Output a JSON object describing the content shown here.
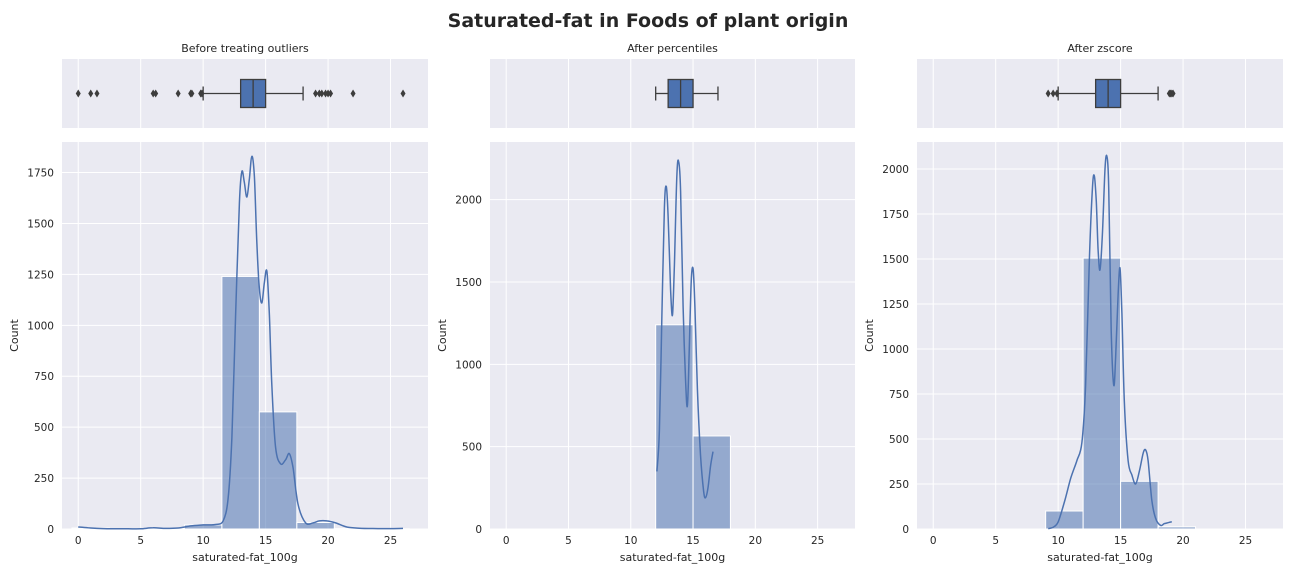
{
  "figure_title": "Saturated-fat in Foods of plant origin",
  "colors": {
    "panel_bg": "#eaeaf2",
    "grid": "#ffffff",
    "bar_fill": "#4c72b0",
    "kde_line": "#4c72b0",
    "box_edge": "#3d3d3d",
    "text": "#262626"
  },
  "chart_data": [
    {
      "type": "histogram",
      "title": "Before treating outliers",
      "xlabel": "saturated-fat_100g",
      "ylabel": "Count",
      "xlim": [
        -1.3,
        28
      ],
      "ylim": [
        0,
        1900
      ],
      "xticks": [
        0,
        5,
        10,
        15,
        20,
        25
      ],
      "yticks": [
        0,
        250,
        500,
        750,
        1000,
        1250,
        1500,
        1750
      ],
      "bins": [
        {
          "x0": -0.5,
          "x1": 2.5,
          "count": 5
        },
        {
          "x0": 2.5,
          "x1": 5.5,
          "count": 1
        },
        {
          "x0": 5.5,
          "x1": 8.5,
          "count": 4
        },
        {
          "x0": 8.5,
          "x1": 11.5,
          "count": 20
        },
        {
          "x0": 11.5,
          "x1": 14.5,
          "count": 1240
        },
        {
          "x0": 14.5,
          "x1": 17.5,
          "count": 575
        },
        {
          "x0": 17.5,
          "x1": 20.5,
          "count": 32
        },
        {
          "x0": 20.5,
          "x1": 23.5,
          "count": 2
        },
        {
          "x0": 23.5,
          "x1": 26.5,
          "count": 1
        }
      ],
      "kde": [
        [
          0,
          10
        ],
        [
          1,
          5
        ],
        [
          2,
          2
        ],
        [
          3,
          1
        ],
        [
          4,
          1
        ],
        [
          5,
          1
        ],
        [
          6,
          6
        ],
        [
          7,
          3
        ],
        [
          8,
          5
        ],
        [
          9,
          15
        ],
        [
          10,
          20
        ],
        [
          11,
          22
        ],
        [
          11.6,
          40
        ],
        [
          12,
          150
        ],
        [
          12.3,
          450
        ],
        [
          12.6,
          1050
        ],
        [
          12.9,
          1600
        ],
        [
          13.1,
          1755
        ],
        [
          13.3,
          1700
        ],
        [
          13.5,
          1630
        ],
        [
          13.7,
          1720
        ],
        [
          13.9,
          1830
        ],
        [
          14.1,
          1730
        ],
        [
          14.3,
          1400
        ],
        [
          14.5,
          1180
        ],
        [
          14.7,
          1110
        ],
        [
          14.9,
          1210
        ],
        [
          15.1,
          1265
        ],
        [
          15.3,
          1050
        ],
        [
          15.5,
          700
        ],
        [
          15.8,
          400
        ],
        [
          16.2,
          320
        ],
        [
          16.6,
          340
        ],
        [
          16.9,
          370
        ],
        [
          17.2,
          300
        ],
        [
          17.6,
          120
        ],
        [
          18.2,
          30
        ],
        [
          18.8,
          30
        ],
        [
          19.3,
          40
        ],
        [
          19.9,
          40
        ],
        [
          20.6,
          30
        ],
        [
          21.5,
          10
        ],
        [
          22.5,
          4
        ],
        [
          24,
          2
        ],
        [
          25,
          2
        ],
        [
          26,
          3
        ]
      ],
      "box": {
        "q1": 13,
        "median": 14,
        "q3": 15,
        "whisker_low": 10,
        "whisker_high": 18,
        "fliers": [
          0,
          1,
          1.5,
          6,
          6.2,
          8,
          9,
          9.1,
          9.8,
          9.9,
          19,
          19.3,
          19.5,
          19.8,
          20,
          20.2,
          22,
          26
        ]
      }
    },
    {
      "type": "histogram",
      "title": "After percentiles",
      "xlabel": "saturated-fat_100g",
      "ylabel": "Count",
      "xlim": [
        -1.3,
        28
      ],
      "ylim": [
        0,
        2350
      ],
      "xticks": [
        0,
        5,
        10,
        15,
        20,
        25
      ],
      "yticks": [
        0,
        500,
        1000,
        1500,
        2000
      ],
      "bins": [
        {
          "x0": 12,
          "x1": 15,
          "count": 1240
        },
        {
          "x0": 15,
          "x1": 18,
          "count": 565
        }
      ],
      "kde": [
        [
          12.1,
          350
        ],
        [
          12.3,
          600
        ],
        [
          12.5,
          1300
        ],
        [
          12.7,
          1950
        ],
        [
          12.85,
          2080
        ],
        [
          13.0,
          1900
        ],
        [
          13.2,
          1450
        ],
        [
          13.35,
          1300
        ],
        [
          13.5,
          1600
        ],
        [
          13.7,
          2150
        ],
        [
          13.85,
          2230
        ],
        [
          14.0,
          2050
        ],
        [
          14.2,
          1350
        ],
        [
          14.4,
          900
        ],
        [
          14.55,
          750
        ],
        [
          14.7,
          1100
        ],
        [
          14.85,
          1500
        ],
        [
          15.0,
          1580
        ],
        [
          15.15,
          1350
        ],
        [
          15.35,
          850
        ],
        [
          15.6,
          450
        ],
        [
          15.85,
          230
        ],
        [
          16.0,
          190
        ],
        [
          16.2,
          250
        ],
        [
          16.4,
          380
        ],
        [
          16.6,
          470
        ]
      ],
      "box": {
        "q1": 13,
        "median": 14,
        "q3": 15,
        "whisker_low": 12,
        "whisker_high": 17,
        "fliers": []
      }
    },
    {
      "type": "histogram",
      "title": "After zscore",
      "xlabel": "saturated-fat_100g",
      "ylabel": "Count",
      "xlim": [
        -1.3,
        28
      ],
      "ylim": [
        0,
        2150
      ],
      "xticks": [
        0,
        5,
        10,
        15,
        20,
        25
      ],
      "yticks": [
        0,
        250,
        500,
        750,
        1000,
        1250,
        1500,
        1750,
        2000
      ],
      "bins": [
        {
          "x0": 9,
          "x1": 12,
          "count": 100
        },
        {
          "x0": 12,
          "x1": 15,
          "count": 1505
        },
        {
          "x0": 15,
          "x1": 18,
          "count": 265
        },
        {
          "x0": 18,
          "x1": 21,
          "count": 12
        }
      ],
      "kde": [
        [
          9.2,
          2
        ],
        [
          9.6,
          10
        ],
        [
          10,
          40
        ],
        [
          10.5,
          150
        ],
        [
          11,
          280
        ],
        [
          11.5,
          380
        ],
        [
          11.9,
          480
        ],
        [
          12.2,
          800
        ],
        [
          12.5,
          1500
        ],
        [
          12.75,
          1900
        ],
        [
          12.9,
          1960
        ],
        [
          13.05,
          1820
        ],
        [
          13.2,
          1550
        ],
        [
          13.35,
          1440
        ],
        [
          13.55,
          1650
        ],
        [
          13.75,
          2000
        ],
        [
          13.9,
          2070
        ],
        [
          14.05,
          1900
        ],
        [
          14.25,
          1100
        ],
        [
          14.45,
          800
        ],
        [
          14.6,
          950
        ],
        [
          14.8,
          1300
        ],
        [
          14.95,
          1450
        ],
        [
          15.1,
          1200
        ],
        [
          15.3,
          700
        ],
        [
          15.6,
          380
        ],
        [
          15.9,
          300
        ],
        [
          16.2,
          250
        ],
        [
          16.5,
          320
        ],
        [
          16.8,
          420
        ],
        [
          17.0,
          440
        ],
        [
          17.2,
          380
        ],
        [
          17.5,
          160
        ],
        [
          17.8,
          60
        ],
        [
          18.2,
          20
        ],
        [
          18.5,
          30
        ],
        [
          18.8,
          35
        ],
        [
          19.1,
          40
        ]
      ],
      "box": {
        "q1": 13,
        "median": 14,
        "q3": 15,
        "whisker_low": 10,
        "whisker_high": 18,
        "fliers": [
          9.2,
          9.6,
          9.9,
          18.9,
          19.0,
          19.1,
          19.2
        ]
      }
    }
  ]
}
